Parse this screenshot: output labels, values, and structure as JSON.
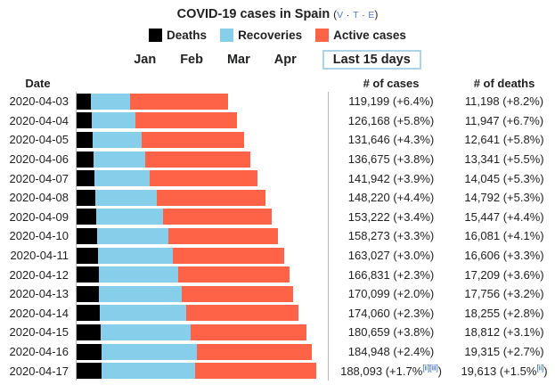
{
  "title": {
    "text": "COVID-19 cases in Spain",
    "links": [
      "v",
      "t",
      "e"
    ]
  },
  "legend": [
    {
      "label": "Deaths",
      "color": "#000000"
    },
    {
      "label": "Recoveries",
      "color": "#87CEEB"
    },
    {
      "label": "Active cases",
      "color": "#FF6347"
    }
  ],
  "nav": {
    "months": [
      "Jan",
      "Feb",
      "Mar",
      "Apr"
    ],
    "selected": "Last 15 days"
  },
  "table": {
    "headers": {
      "date": "Date",
      "cases": "# of cases",
      "deaths": "# of deaths"
    },
    "rows": [
      {
        "date": "2020-04-03",
        "cases_text": "119,199 (+6.4%)",
        "deaths_text": "11,198 (+8.2%)"
      },
      {
        "date": "2020-04-04",
        "cases_text": "126,168 (+5.8%)",
        "deaths_text": "11,947 (+6.7%)"
      },
      {
        "date": "2020-04-05",
        "cases_text": "131,646 (+4.3%)",
        "deaths_text": "12,641 (+5.8%)"
      },
      {
        "date": "2020-04-06",
        "cases_text": "136,675 (+3.8%)",
        "deaths_text": "13,341 (+5.5%)"
      },
      {
        "date": "2020-04-07",
        "cases_text": "141,942 (+3.9%)",
        "deaths_text": "14,045 (+5.3%)"
      },
      {
        "date": "2020-04-08",
        "cases_text": "148,220 (+4.4%)",
        "deaths_text": "14,792 (+5.3%)"
      },
      {
        "date": "2020-04-09",
        "cases_text": "153,222 (+3.4%)",
        "deaths_text": "15,447 (+4.4%)"
      },
      {
        "date": "2020-04-10",
        "cases_text": "158,273 (+3.3%)",
        "deaths_text": "16,081 (+4.1%)"
      },
      {
        "date": "2020-04-11",
        "cases_text": "163,027 (+3.0%)",
        "deaths_text": "16,606 (+3.3%)"
      },
      {
        "date": "2020-04-12",
        "cases_text": "166,831 (+2.3%)",
        "deaths_text": "17,209 (+3.6%)"
      },
      {
        "date": "2020-04-13",
        "cases_text": "170,099 (+2.0%)",
        "deaths_text": "17,756 (+3.2%)"
      },
      {
        "date": "2020-04-14",
        "cases_text": "174,060 (+2.3%)",
        "deaths_text": "18,255 (+2.8%)"
      },
      {
        "date": "2020-04-15",
        "cases_text": "180,659 (+3.8%)",
        "deaths_text": "18,812 (+3.1%)"
      },
      {
        "date": "2020-04-16",
        "cases_text": "184,948 (+2.4%)",
        "deaths_text": "19,315 (+2.7%)"
      },
      {
        "date": "2020-04-17",
        "cases_text": "188,093 (+1.7%",
        "cases_refs": [
          "[ii]",
          "[iii]"
        ],
        "cases_after": ")",
        "deaths_text": "19,613 (+1.5%",
        "deaths_refs": [
          "[ii]"
        ],
        "deaths_after": ")"
      }
    ]
  },
  "chart_data": {
    "type": "bar",
    "orientation": "horizontal",
    "stacked": true,
    "title": "COVID-19 cases in Spain",
    "legend_position": "top",
    "categories": [
      "2020-04-03",
      "2020-04-04",
      "2020-04-05",
      "2020-04-06",
      "2020-04-07",
      "2020-04-08",
      "2020-04-09",
      "2020-04-10",
      "2020-04-11",
      "2020-04-12",
      "2020-04-13",
      "2020-04-14",
      "2020-04-15",
      "2020-04-16",
      "2020-04-17"
    ],
    "series": [
      {
        "name": "Deaths",
        "color": "#000000",
        "values": [
          11198,
          11947,
          12641,
          13341,
          14045,
          14792,
          15447,
          16081,
          16606,
          17209,
          17756,
          18255,
          18812,
          19315,
          19613
        ]
      },
      {
        "name": "Recoveries",
        "color": "#87CEEB",
        "values": [
          30513,
          34219,
          38080,
          40437,
          43208,
          48021,
          52165,
          55668,
          59109,
          62391,
          64727,
          67504,
          70853,
          74797,
          73100
        ]
      },
      {
        "name": "Active cases",
        "color": "#FF6347",
        "values": [
          77488,
          80002,
          80925,
          82897,
          84689,
          85407,
          85610,
          86524,
          87312,
          87231,
          87616,
          88301,
          90994,
          90836,
          95380
        ]
      }
    ],
    "totals": [
      119199,
      126168,
      131646,
      136675,
      141942,
      148220,
      153222,
      158273,
      163027,
      166831,
      170099,
      174060,
      180659,
      184948,
      188093
    ],
    "cases_change_pct": [
      "+6.4%",
      "+5.8%",
      "+4.3%",
      "+3.8%",
      "+3.9%",
      "+4.4%",
      "+3.4%",
      "+3.3%",
      "+3.0%",
      "+2.3%",
      "+2.0%",
      "+2.3%",
      "+3.8%",
      "+2.4%",
      "+1.7%"
    ],
    "deaths_change_pct": [
      "+8.2%",
      "+6.7%",
      "+5.8%",
      "+5.5%",
      "+5.3%",
      "+5.3%",
      "+4.4%",
      "+4.1%",
      "+3.3%",
      "+3.6%",
      "+3.2%",
      "+2.8%",
      "+3.1%",
      "+2.7%",
      "+1.5%"
    ],
    "xlim": [
      0,
      190000
    ]
  }
}
